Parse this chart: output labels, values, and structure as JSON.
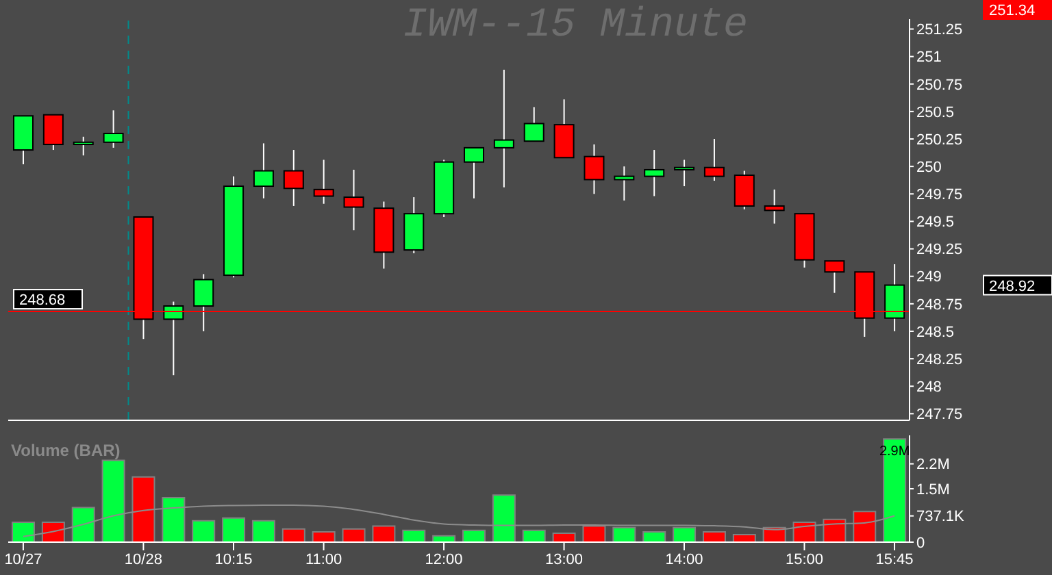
{
  "chart_data": [
    {
      "type": "candlestick",
      "title": "IWM--15 Minute",
      "categories": [
        "10/27",
        null,
        null,
        null,
        "10/28",
        null,
        null,
        "10:15",
        null,
        null,
        "11:00",
        null,
        null,
        null,
        "12:00",
        null,
        null,
        null,
        "13:00",
        null,
        null,
        null,
        "14:00",
        null,
        null,
        null,
        "15:00",
        null,
        null,
        "15:45"
      ],
      "ohlc": [
        [
          250.15,
          250.46,
          250.02,
          250.46
        ],
        [
          250.47,
          250.47,
          250.15,
          250.2
        ],
        [
          250.2,
          250.27,
          250.1,
          250.22
        ],
        [
          250.22,
          250.51,
          250.17,
          250.3
        ],
        [
          249.54,
          249.54,
          248.43,
          248.61
        ],
        [
          248.61,
          248.77,
          248.1,
          248.73
        ],
        [
          248.73,
          249.02,
          248.5,
          248.97
        ],
        [
          249.01,
          249.91,
          248.99,
          249.82
        ],
        [
          249.82,
          250.21,
          249.71,
          249.96
        ],
        [
          249.96,
          250.15,
          249.64,
          249.8
        ],
        [
          249.79,
          250.06,
          249.66,
          249.73
        ],
        [
          249.72,
          249.97,
          249.42,
          249.63
        ],
        [
          249.62,
          249.68,
          249.07,
          249.22
        ],
        [
          249.24,
          249.72,
          249.21,
          249.57
        ],
        [
          249.57,
          250.06,
          249.54,
          250.04
        ],
        [
          250.04,
          250.17,
          249.71,
          250.17
        ],
        [
          250.17,
          250.88,
          249.81,
          250.24
        ],
        [
          250.23,
          250.54,
          250.23,
          250.39
        ],
        [
          250.38,
          250.61,
          250.08,
          250.08
        ],
        [
          250.09,
          250.2,
          249.75,
          249.88
        ],
        [
          249.88,
          250.0,
          249.69,
          249.91
        ],
        [
          249.91,
          250.15,
          249.73,
          249.97
        ],
        [
          249.97,
          250.06,
          249.82,
          249.99
        ],
        [
          249.99,
          250.25,
          249.87,
          249.91
        ],
        [
          249.92,
          249.96,
          249.61,
          249.64
        ],
        [
          249.64,
          249.79,
          249.48,
          249.6
        ],
        [
          249.57,
          249.57,
          249.08,
          249.15
        ],
        [
          249.14,
          249.14,
          248.85,
          249.04
        ],
        [
          249.04,
          249.04,
          248.45,
          248.62
        ],
        [
          248.62,
          249.11,
          248.5,
          248.92
        ]
      ],
      "colors": [
        "#00ff40",
        "#ff0000",
        "#00ff40",
        "#00ff40",
        "#ff0000",
        "#00ff40",
        "#00ff40",
        "#00ff40",
        "#00ff40",
        "#ff0000",
        "#ff0000",
        "#ff0000",
        "#ff0000",
        "#00ff40",
        "#00ff40",
        "#00ff40",
        "#00ff40",
        "#00ff40",
        "#ff0000",
        "#ff0000",
        "#00ff40",
        "#00ff40",
        "#00ff40",
        "#ff0000",
        "#ff0000",
        "#ff0000",
        "#ff0000",
        "#ff0000",
        "#ff0000",
        "#00ff40"
      ],
      "ylim": [
        247.69,
        251.34
      ],
      "yticks": [
        247.75,
        248,
        248.25,
        248.5,
        248.75,
        249,
        249.25,
        249.5,
        249.75,
        250,
        250.25,
        250.5,
        250.75,
        251,
        251.25
      ],
      "tick_labels": "y",
      "ref_lines": [
        {
          "axis": "x",
          "value": "10/28",
          "color": "#008b8b",
          "line_style": "dashed"
        },
        {
          "axis": "y",
          "value": 248.68,
          "label": "248.68",
          "color": "#ff0000",
          "line_style": "solid"
        }
      ],
      "annotations": [
        "251.34",
        "248.92"
      ]
    },
    {
      "type": "bar",
      "title": "Volume (BAR)",
      "categories": [
        "10/27",
        null,
        null,
        null,
        "10/28",
        null,
        null,
        "10:15",
        null,
        null,
        "11:00",
        null,
        null,
        null,
        "12:00",
        null,
        null,
        null,
        "13:00",
        null,
        null,
        null,
        "14:00",
        null,
        null,
        null,
        "15:00",
        null,
        null,
        "15:45"
      ],
      "series": [
        {
          "type": "bar",
          "values": [
            560000,
            560000,
            970000,
            2300000,
            1830000,
            1250000,
            600000,
            680000,
            600000,
            370000,
            290000,
            370000,
            450000,
            330000,
            180000,
            330000,
            1320000,
            330000,
            250000,
            450000,
            410000,
            290000,
            410000,
            290000,
            210000,
            410000,
            560000,
            640000,
            860000,
            2900000
          ],
          "colors": [
            "#00ff40",
            "#ff0000",
            "#00ff40",
            "#00ff40",
            "#ff0000",
            "#00ff40",
            "#00ff40",
            "#00ff40",
            "#00ff40",
            "#ff0000",
            "#ff0000",
            "#ff0000",
            "#ff0000",
            "#00ff40",
            "#00ff40",
            "#00ff40",
            "#00ff40",
            "#00ff40",
            "#ff0000",
            "#ff0000",
            "#00ff40",
            "#00ff40",
            "#00ff40",
            "#ff0000",
            "#ff0000",
            "#ff0000",
            "#ff0000",
            "#ff0000",
            "#ff0000",
            "#00ff40"
          ],
          "value_labels": [
            null,
            null,
            null,
            null,
            null,
            null,
            null,
            null,
            null,
            null,
            null,
            null,
            null,
            null,
            null,
            null,
            null,
            null,
            null,
            null,
            null,
            null,
            null,
            null,
            null,
            null,
            null,
            null,
            null,
            "2.9M"
          ]
        },
        {
          "type": "line",
          "color": "#8c8c8c",
          "values": [
            160000,
            300000,
            500000,
            740000,
            890000,
            960000,
            1010000,
            1030000,
            1040000,
            1040000,
            1010000,
            920000,
            780000,
            620000,
            510000,
            480000,
            470000,
            470000,
            480000,
            480000,
            470000,
            470000,
            470000,
            460000,
            430000,
            350000,
            440000,
            510000,
            540000,
            740000
          ]
        }
      ],
      "ylim": [
        0,
        3000000
      ],
      "yticks": [
        0,
        {
          "value": 737100,
          "label": "737.1K"
        },
        {
          "value": 1500000,
          "label": "1.5M"
        },
        {
          "value": 2200000,
          "label": "2.2M"
        }
      ]
    }
  ]
}
